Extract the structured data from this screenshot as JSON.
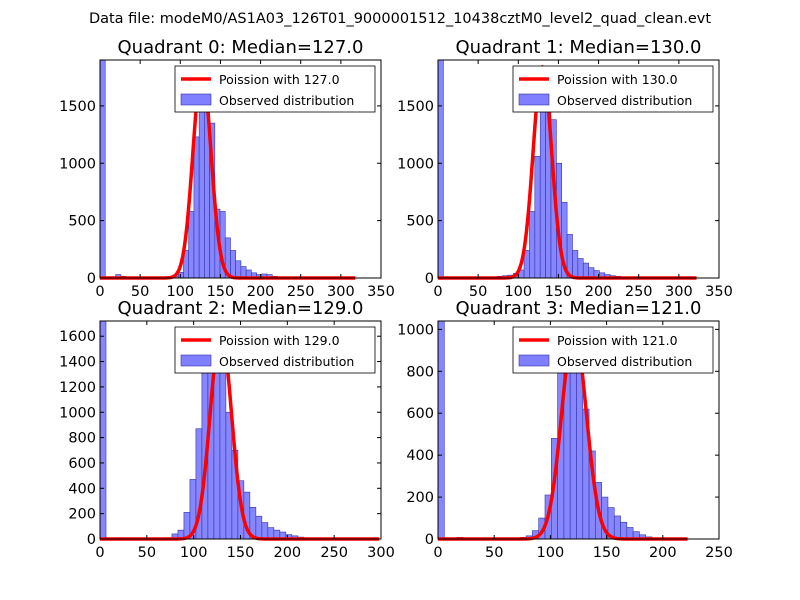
{
  "figure_title": "Data file: modeM0/AS1A03_126T01_9000001512_10438cztM0_level2_quad_clean.evt",
  "colors": {
    "hist_fill": "#7f7fff",
    "hist_edge": "#3333aa",
    "poisson_line": "#ff0000"
  },
  "chart_data": [
    {
      "type": "bar",
      "title": "Quadrant 0: Median=127.0",
      "legend": {
        "line": "Poission with 127.0",
        "bars": "Observed distribution",
        "placement": "top-right"
      },
      "xlim": [
        0,
        350
      ],
      "ylim": [
        0,
        1900
      ],
      "xticks": [
        0,
        50,
        100,
        150,
        200,
        250,
        300,
        350
      ],
      "yticks": [
        0,
        500,
        1000,
        1500
      ],
      "bin_width": 6.5,
      "bins": [
        [
          0,
          1900
        ],
        [
          19.5,
          30
        ],
        [
          26,
          15
        ],
        [
          32.5,
          5
        ],
        [
          39,
          3
        ],
        [
          45.5,
          3
        ],
        [
          52,
          3
        ],
        [
          58.5,
          3
        ],
        [
          65,
          4
        ],
        [
          71.5,
          5
        ],
        [
          78,
          8
        ],
        [
          84.5,
          10
        ],
        [
          91,
          15
        ],
        [
          97.5,
          50
        ],
        [
          104,
          240
        ],
        [
          110.5,
          580
        ],
        [
          117,
          1230
        ],
        [
          123.5,
          1720
        ],
        [
          130,
          1780
        ],
        [
          136.5,
          1350
        ],
        [
          143,
          600
        ],
        [
          149.5,
          580
        ],
        [
          156,
          350
        ],
        [
          162.5,
          240
        ],
        [
          169,
          150
        ],
        [
          175.5,
          100
        ],
        [
          182,
          70
        ],
        [
          188.5,
          45
        ],
        [
          195,
          30
        ],
        [
          201.5,
          35
        ],
        [
          208,
          30
        ],
        [
          214.5,
          15
        ],
        [
          221,
          10
        ],
        [
          227.5,
          8
        ],
        [
          234,
          6
        ],
        [
          240.5,
          4
        ],
        [
          247,
          3
        ]
      ],
      "poisson": {
        "mean": 127.0,
        "peak": 1810,
        "x_range": [
          0,
          318
        ]
      }
    },
    {
      "type": "bar",
      "title": "Quadrant 1: Median=130.0",
      "legend": {
        "line": "Poission with 130.0",
        "bars": "Observed distribution",
        "placement": "top-right"
      },
      "xlim": [
        0,
        350
      ],
      "ylim": [
        0,
        1900
      ],
      "xticks": [
        0,
        50,
        100,
        150,
        200,
        250,
        300,
        350
      ],
      "yticks": [
        0,
        500,
        1000,
        1500
      ],
      "bin_width": 6.7,
      "bins": [
        [
          0,
          1900
        ],
        [
          67,
          10
        ],
        [
          73.7,
          15
        ],
        [
          80.4,
          20
        ],
        [
          87.1,
          25
        ],
        [
          93.8,
          40
        ],
        [
          100.5,
          70
        ],
        [
          107.2,
          240
        ],
        [
          113.9,
          580
        ],
        [
          120.6,
          1060
        ],
        [
          127.3,
          1560
        ],
        [
          134,
          1750
        ],
        [
          140.7,
          1380
        ],
        [
          147.4,
          1000
        ],
        [
          154.1,
          660
        ],
        [
          160.8,
          380
        ],
        [
          167.5,
          240
        ],
        [
          174.2,
          170
        ],
        [
          180.9,
          130
        ],
        [
          187.6,
          90
        ],
        [
          194.3,
          65
        ],
        [
          201,
          45
        ],
        [
          207.7,
          30
        ],
        [
          214.4,
          20
        ],
        [
          221.1,
          15
        ],
        [
          227.8,
          10
        ]
      ],
      "poisson": {
        "mean": 130.0,
        "peak": 1840,
        "x_range": [
          0,
          322
        ]
      }
    },
    {
      "type": "bar",
      "title": "Quadrant 2: Median=129.0",
      "legend": {
        "line": "Poission with 129.0",
        "bars": "Observed distribution",
        "placement": "top-right"
      },
      "xlim": [
        0,
        300
      ],
      "ylim": [
        0,
        1720
      ],
      "xticks": [
        0,
        50,
        100,
        150,
        200,
        250,
        300
      ],
      "yticks": [
        0,
        200,
        400,
        600,
        800,
        1000,
        1200,
        1400,
        1600
      ],
      "bin_width": 6.4,
      "bins": [
        [
          0,
          1720
        ],
        [
          19.2,
          10
        ],
        [
          25.6,
          8
        ],
        [
          32,
          4
        ],
        [
          38.4,
          3
        ],
        [
          44.8,
          3
        ],
        [
          51.2,
          3
        ],
        [
          57.6,
          4
        ],
        [
          64,
          5
        ],
        [
          70.4,
          10
        ],
        [
          76.8,
          40
        ],
        [
          83.2,
          70
        ],
        [
          89.6,
          210
        ],
        [
          96,
          470
        ],
        [
          102.4,
          870
        ],
        [
          108.8,
          1310
        ],
        [
          115.2,
          1580
        ],
        [
          121.6,
          1620
        ],
        [
          128,
          1330
        ],
        [
          134.4,
          1000
        ],
        [
          140.8,
          700
        ],
        [
          147.2,
          460
        ],
        [
          153.6,
          370
        ],
        [
          160,
          250
        ],
        [
          166.4,
          180
        ],
        [
          172.8,
          130
        ],
        [
          179.2,
          90
        ],
        [
          185.6,
          70
        ],
        [
          192,
          55
        ],
        [
          198.4,
          35
        ],
        [
          204.8,
          25
        ],
        [
          211.2,
          15
        ],
        [
          217.6,
          10
        ],
        [
          224,
          5
        ]
      ],
      "poisson": {
        "mean": 129.0,
        "peak": 1640,
        "x_range": [
          0,
          298
        ]
      }
    },
    {
      "type": "bar",
      "title": "Quadrant 3: Median=121.0",
      "legend": {
        "line": "Poission with 121.0",
        "bars": "Observed distribution",
        "placement": "top-right"
      },
      "xlim": [
        0,
        250
      ],
      "ylim": [
        0,
        1040
      ],
      "xticks": [
        0,
        50,
        100,
        150,
        200,
        250
      ],
      "yticks": [
        0,
        200,
        400,
        600,
        800,
        1000
      ],
      "bin_width": 5.6,
      "bins": [
        [
          0,
          1040
        ],
        [
          16.8,
          8
        ],
        [
          22.4,
          5
        ],
        [
          28,
          3
        ],
        [
          33.6,
          3
        ],
        [
          39.2,
          3
        ],
        [
          44.8,
          3
        ],
        [
          50.4,
          3
        ],
        [
          56,
          4
        ],
        [
          61.6,
          5
        ],
        [
          67.2,
          5
        ],
        [
          72.8,
          8
        ],
        [
          78.4,
          15
        ],
        [
          84,
          40
        ],
        [
          89.6,
          100
        ],
        [
          95.2,
          210
        ],
        [
          100.8,
          480
        ],
        [
          106.4,
          800
        ],
        [
          112,
          940
        ],
        [
          117.6,
          960
        ],
        [
          123.2,
          880
        ],
        [
          128.8,
          620
        ],
        [
          134.4,
          420
        ],
        [
          140,
          270
        ],
        [
          145.6,
          200
        ],
        [
          151.2,
          150
        ],
        [
          156.8,
          110
        ],
        [
          162.4,
          80
        ],
        [
          168,
          55
        ],
        [
          173.6,
          35
        ],
        [
          179.2,
          20
        ],
        [
          184.8,
          10
        ],
        [
          190.4,
          5
        ]
      ],
      "poisson": {
        "mean": 121.0,
        "peak": 990,
        "x_range": [
          0,
          222
        ]
      }
    }
  ]
}
